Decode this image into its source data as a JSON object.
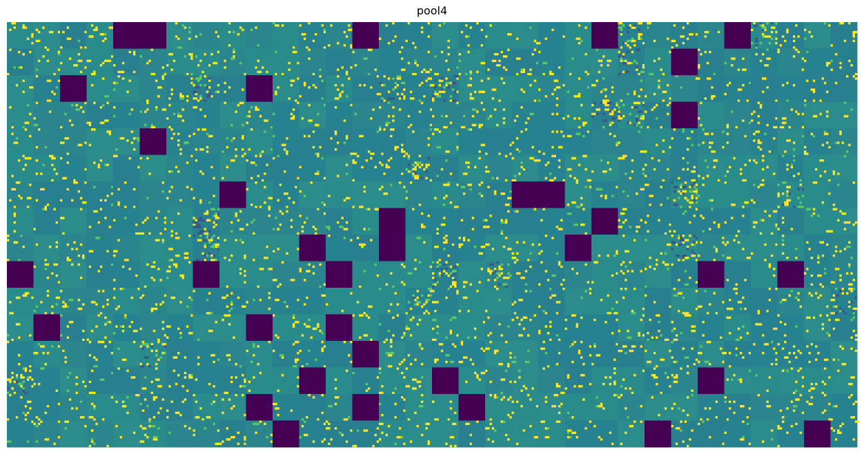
{
  "chart_data": {
    "type": "heatmap",
    "title": "pool4",
    "grid": {
      "rows": 16,
      "cols": 32
    },
    "colormap": "viridis",
    "colors": {
      "background": "#2a8b8d",
      "background_alt": "#27818c",
      "low": "#440154",
      "mid": "#21918c",
      "high": "#fde725",
      "mid_high": "#5ec962"
    },
    "axes_visible": false,
    "dead_channels": [
      [
        0,
        4
      ],
      [
        0,
        5
      ],
      [
        0,
        13
      ],
      [
        0,
        22
      ],
      [
        0,
        27
      ],
      [
        1,
        25
      ],
      [
        2,
        2
      ],
      [
        2,
        9
      ],
      [
        3,
        25
      ],
      [
        4,
        5
      ],
      [
        6,
        8
      ],
      [
        6,
        19
      ],
      [
        6,
        20
      ],
      [
        7,
        14
      ],
      [
        7,
        22
      ],
      [
        8,
        11
      ],
      [
        8,
        14
      ],
      [
        8,
        21
      ],
      [
        9,
        0
      ],
      [
        9,
        7
      ],
      [
        9,
        12
      ],
      [
        9,
        26
      ],
      [
        9,
        29
      ],
      [
        11,
        1
      ],
      [
        11,
        9
      ],
      [
        11,
        12
      ],
      [
        12,
        13
      ],
      [
        13,
        11
      ],
      [
        13,
        16
      ],
      [
        13,
        26
      ],
      [
        14,
        9
      ],
      [
        14,
        13
      ],
      [
        14,
        17
      ],
      [
        15,
        10
      ],
      [
        15,
        24
      ],
      [
        15,
        30
      ]
    ],
    "textured_channels": [
      [
        0,
        23
      ],
      [
        1,
        23
      ],
      [
        2,
        7
      ],
      [
        2,
        14
      ],
      [
        3,
        22
      ],
      [
        3,
        23
      ],
      [
        5,
        15
      ],
      [
        6,
        25
      ],
      [
        7,
        7
      ],
      [
        8,
        7
      ],
      [
        9,
        16
      ],
      [
        9,
        18
      ],
      [
        10,
        15
      ],
      [
        10,
        31
      ],
      [
        12,
        5
      ],
      [
        13,
        0
      ],
      [
        0,
        28
      ],
      [
        6,
        29
      ],
      [
        2,
        16
      ],
      [
        8,
        25
      ]
    ]
  }
}
